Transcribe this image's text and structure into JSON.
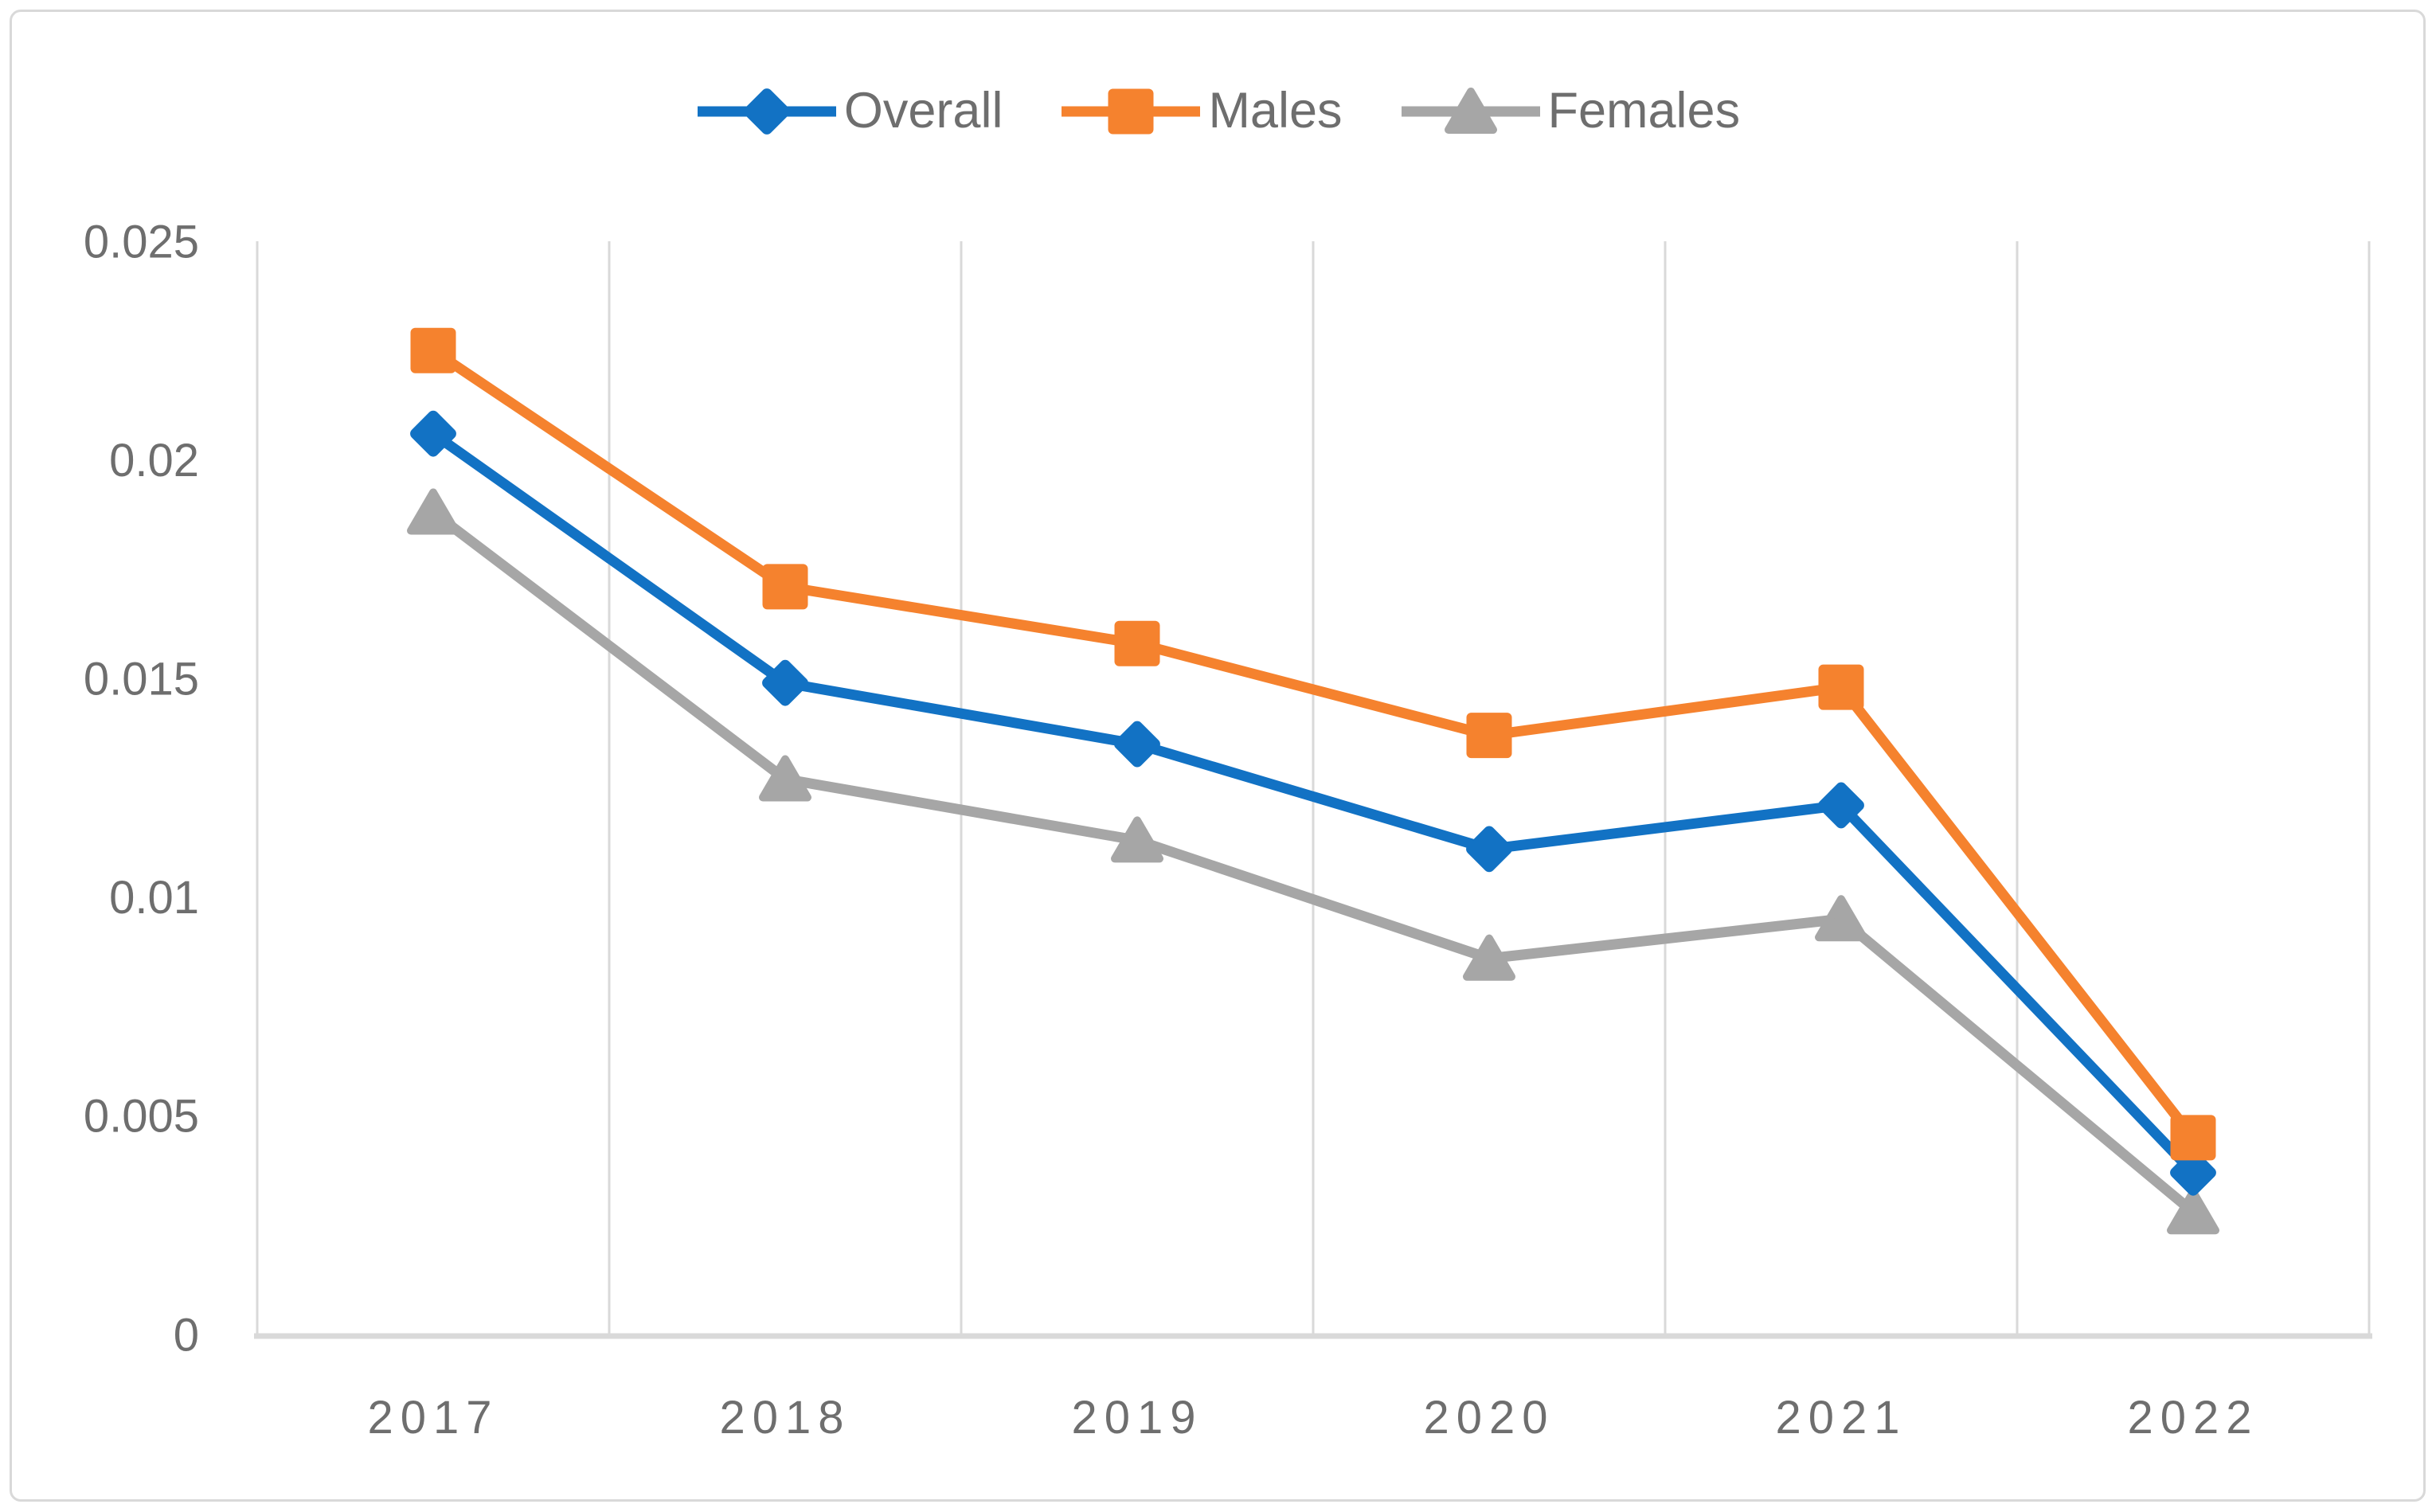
{
  "figure": {
    "background": "#FFFFFF",
    "border_color": "#D9D9D9"
  },
  "chart_data": {
    "type": "line",
    "title": "",
    "xlabel": "",
    "ylabel": "",
    "categories": [
      "2017",
      "2018",
      "2019",
      "2020",
      "2021",
      "2022"
    ],
    "series": [
      {
        "name": "Overall",
        "marker": "diamond",
        "color": "#1272C4",
        "values": [
          0.0206,
          0.0149,
          0.0135,
          0.0111,
          0.0121,
          0.0037
        ]
      },
      {
        "name": "Males",
        "marker": "square",
        "color": "#F5822E",
        "values": [
          0.0225,
          0.0171,
          0.0158,
          0.0137,
          0.0148,
          0.0045
        ]
      },
      {
        "name": "Females",
        "marker": "triangle",
        "color": "#A6A6A6",
        "values": [
          0.0188,
          0.0127,
          0.0113,
          0.0086,
          0.0095,
          0.0028
        ]
      }
    ],
    "z_order_bottom_to_top": [
      "Females",
      "Overall",
      "Males"
    ],
    "ylim": [
      0,
      0.025
    ],
    "yticks": [
      0,
      0.005,
      0.01,
      0.015,
      0.02,
      0.025
    ],
    "ytick_labels": [
      "0",
      "0.005",
      "0.01",
      "0.015",
      "0.02",
      "0.025"
    ],
    "grid": "vertical-only",
    "gridline_color": "#D9D9D9",
    "axis_line_color": "#D9D9D9",
    "axis_text_color": "#6E6E6E",
    "legend_position": "top-center"
  }
}
